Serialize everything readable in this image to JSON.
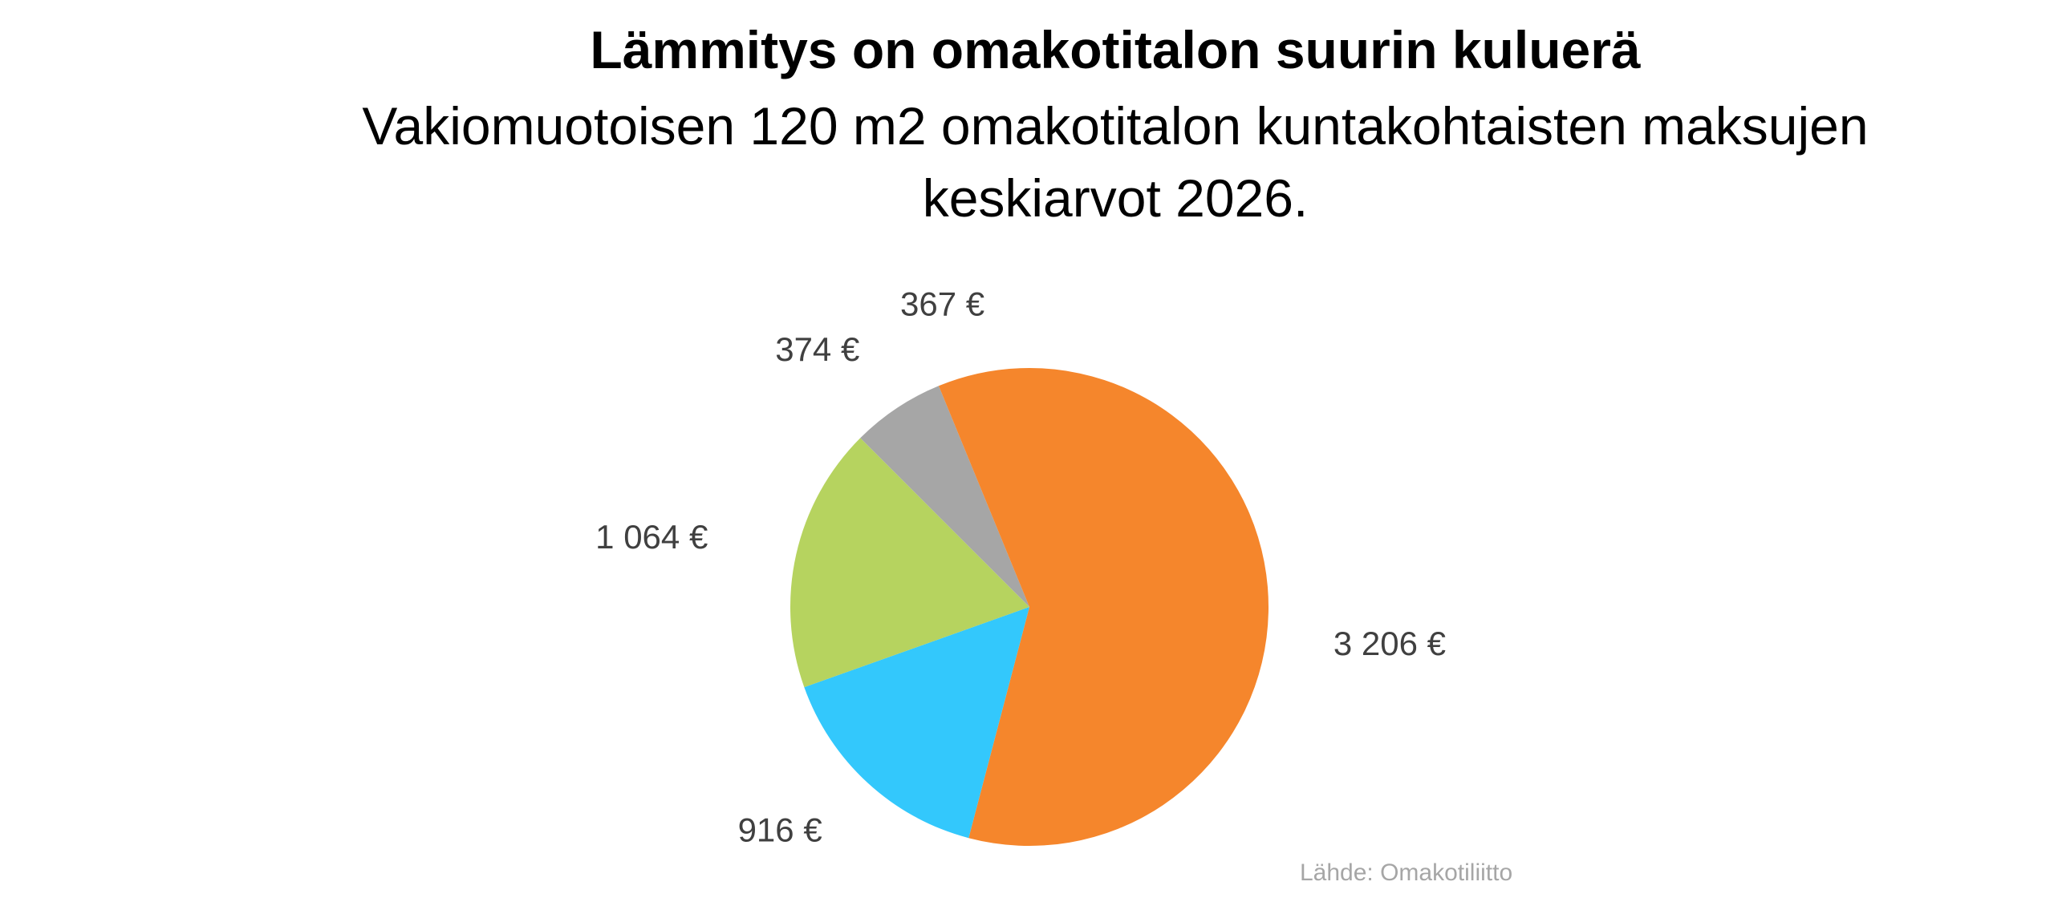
{
  "chart_data": {
    "type": "pie",
    "title": "Lämmitys on omakotitalon suurin kuluerä",
    "subtitle": "Vakiomuotoisen 120 m2 omakotitalon kuntakohtaisten maksujen keskiarvot 2026.",
    "values": [
      3206,
      916,
      1064,
      374,
      367
    ],
    "labels": [
      "3 206 €",
      "916 €",
      "1 064 €",
      "374 €",
      "367 €"
    ],
    "colors": [
      "#F5862C",
      "#33C8FC",
      "#B6D35F",
      "#A6A6A6",
      "#F5862C"
    ],
    "legend": "none",
    "source": "Lähde: Omakotiliitto"
  }
}
